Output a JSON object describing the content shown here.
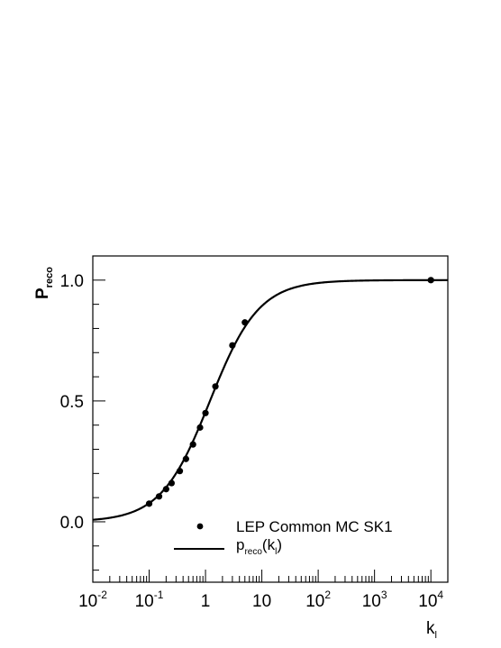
{
  "chart_data": {
    "type": "scatter",
    "ylabel": "P",
    "ylabel_sub": "reco",
    "xlabel": "k",
    "xlabel_sub": "l",
    "x_scale": "log",
    "xlim": [
      0.01,
      20000
    ],
    "ylim": [
      -0.25,
      1.1
    ],
    "grid": false,
    "x_ticks": [
      {
        "value": 0.01,
        "base": "10",
        "exp": "-2"
      },
      {
        "value": 0.1,
        "base": "10",
        "exp": "-1"
      },
      {
        "value": 1,
        "base": "1",
        "exp": ""
      },
      {
        "value": 10,
        "base": "10",
        "exp": ""
      },
      {
        "value": 100,
        "base": "10",
        "exp": "2"
      },
      {
        "value": 1000,
        "base": "10",
        "exp": "3"
      },
      {
        "value": 10000,
        "base": "10",
        "exp": "4"
      }
    ],
    "y_ticks": [
      {
        "value": 0.0,
        "label": "0.0"
      },
      {
        "value": 0.5,
        "label": "0.5"
      },
      {
        "value": 1.0,
        "label": "1.0"
      }
    ],
    "legend_position": "bottom-right",
    "series": [
      {
        "name": "LEP Common MC SK1",
        "kind": "markers",
        "color": "#000000",
        "points": [
          {
            "x": 0.1,
            "y": 0.075
          },
          {
            "x": 0.15,
            "y": 0.105
          },
          {
            "x": 0.2,
            "y": 0.135
          },
          {
            "x": 0.25,
            "y": 0.16
          },
          {
            "x": 0.35,
            "y": 0.21
          },
          {
            "x": 0.45,
            "y": 0.26
          },
          {
            "x": 0.6,
            "y": 0.32
          },
          {
            "x": 0.8,
            "y": 0.39
          },
          {
            "x": 1.0,
            "y": 0.45
          },
          {
            "x": 1.5,
            "y": 0.56
          },
          {
            "x": 3.0,
            "y": 0.73
          },
          {
            "x": 5.0,
            "y": 0.825
          },
          {
            "x": 10000,
            "y": 1.0
          }
        ]
      },
      {
        "name": "p",
        "name_sub": "reco",
        "name_suffix": "(k",
        "name_suffix_sub": "l",
        "name_end": ")",
        "kind": "curve",
        "color": "#000000",
        "function": "logistic",
        "params": {
          "x0": 1.2,
          "slope": 1.0
        }
      }
    ]
  }
}
